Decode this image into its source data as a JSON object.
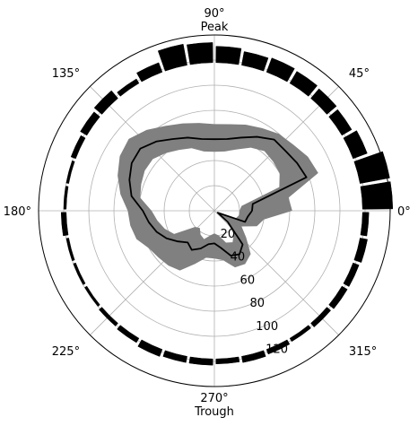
{
  "chart_data": {
    "type": "polar",
    "angle_ticks": [
      {
        "deg": 0,
        "label": "0$^\\circ$",
        "text": "0°",
        "sublabel": ""
      },
      {
        "deg": 45,
        "label": "45°",
        "text": "45°",
        "sublabel": ""
      },
      {
        "deg": 90,
        "label": "90°",
        "text": "90°",
        "sublabel": "Peak"
      },
      {
        "deg": 135,
        "label": "135°",
        "text": "135°",
        "sublabel": ""
      },
      {
        "deg": 180,
        "label": "180°",
        "text": "180°",
        "sublabel": ""
      },
      {
        "deg": 225,
        "label": "225°",
        "text": "225°",
        "sublabel": ""
      },
      {
        "deg": 270,
        "label": "270°",
        "text": "270°",
        "sublabel": "Trough"
      },
      {
        "deg": 315,
        "label": "315°",
        "text": "315°",
        "sublabel": ""
      }
    ],
    "radial_ticks": [
      20,
      40,
      60,
      80,
      100,
      120
    ],
    "radial_label_angle_deg": 293,
    "r_max": 140,
    "grid": true,
    "histogram": {
      "name": "",
      "bin_width_deg": 10,
      "r_base": 118,
      "bars": [
        {
          "angle": 5,
          "height": 24
        },
        {
          "angle": 15,
          "height": 24
        },
        {
          "angle": 25,
          "height": 12
        },
        {
          "angle": 35,
          "height": 9
        },
        {
          "angle": 45,
          "height": 10
        },
        {
          "angle": 55,
          "height": 11
        },
        {
          "angle": 65,
          "height": 12
        },
        {
          "angle": 75,
          "height": 11
        },
        {
          "angle": 85,
          "height": 13
        },
        {
          "angle": 95,
          "height": 16
        },
        {
          "angle": 105,
          "height": 17
        },
        {
          "angle": 115,
          "height": 8
        },
        {
          "angle": 125,
          "height": 4
        },
        {
          "angle": 135,
          "height": 8
        },
        {
          "angle": 145,
          "height": 6
        },
        {
          "angle": 155,
          "height": 4
        },
        {
          "angle": 165,
          "height": 2
        },
        {
          "angle": 175,
          "height": 2
        },
        {
          "angle": 185,
          "height": 4
        },
        {
          "angle": 195,
          "height": 2
        },
        {
          "angle": 205,
          "height": 2
        },
        {
          "angle": 215,
          "height": 2
        },
        {
          "angle": 225,
          "height": 3
        },
        {
          "angle": 235,
          "height": 4
        },
        {
          "angle": 245,
          "height": 6
        },
        {
          "angle": 255,
          "height": 5
        },
        {
          "angle": 265,
          "height": 5
        },
        {
          "angle": 275,
          "height": 4
        },
        {
          "angle": 285,
          "height": 5
        },
        {
          "angle": 295,
          "height": 4
        },
        {
          "angle": 305,
          "height": 3
        },
        {
          "angle": 315,
          "height": 4
        },
        {
          "angle": 325,
          "height": 5
        },
        {
          "angle": 335,
          "height": 5
        },
        {
          "angle": 345,
          "height": 6
        },
        {
          "angle": 355,
          "height": 5
        }
      ]
    },
    "mean_line": {
      "name": "",
      "theta": [
        0,
        10,
        20,
        30,
        40,
        50,
        60,
        70,
        80,
        90,
        100,
        110,
        120,
        130,
        140,
        150,
        160,
        170,
        180,
        190,
        200,
        210,
        220,
        230,
        240,
        250,
        260,
        270,
        280,
        290,
        300,
        310,
        320,
        330,
        340,
        350,
        360
      ],
      "r": [
        30,
        31,
        78,
        76,
        74,
        74,
        68,
        62,
        58,
        57,
        58,
        62,
        66,
        72,
        77,
        76,
        72,
        67,
        57,
        53,
        49,
        44,
        38,
        33,
        36,
        32,
        27,
        26,
        30,
        38,
        40,
        35,
        14,
        3,
        26,
        27,
        30
      ]
    },
    "band": {
      "name": "",
      "color": "#808080",
      "theta": [
        0,
        10,
        20,
        30,
        40,
        50,
        60,
        70,
        80,
        90,
        100,
        110,
        120,
        130,
        140,
        150,
        160,
        170,
        180,
        190,
        200,
        210,
        220,
        230,
        240,
        250,
        260,
        270,
        280,
        290,
        300,
        310,
        320,
        330,
        340,
        350,
        360
      ],
      "upper": [
        62,
        60,
        88,
        86,
        82,
        80,
        76,
        73,
        70,
        69,
        71,
        74,
        78,
        84,
        89,
        87,
        82,
        76,
        69,
        68,
        66,
        60,
        58,
        57,
        55,
        45,
        38,
        38,
        40,
        48,
        49,
        45,
        33,
        25,
        36,
        40,
        62
      ],
      "lower": [
        20,
        22,
        55,
        60,
        61,
        62,
        58,
        52,
        48,
        47,
        48,
        53,
        56,
        60,
        64,
        64,
        62,
        60,
        50,
        46,
        42,
        37,
        20,
        18,
        22,
        24,
        20,
        18,
        20,
        27,
        29,
        24,
        12,
        3,
        18,
        20,
        20
      ]
    }
  }
}
